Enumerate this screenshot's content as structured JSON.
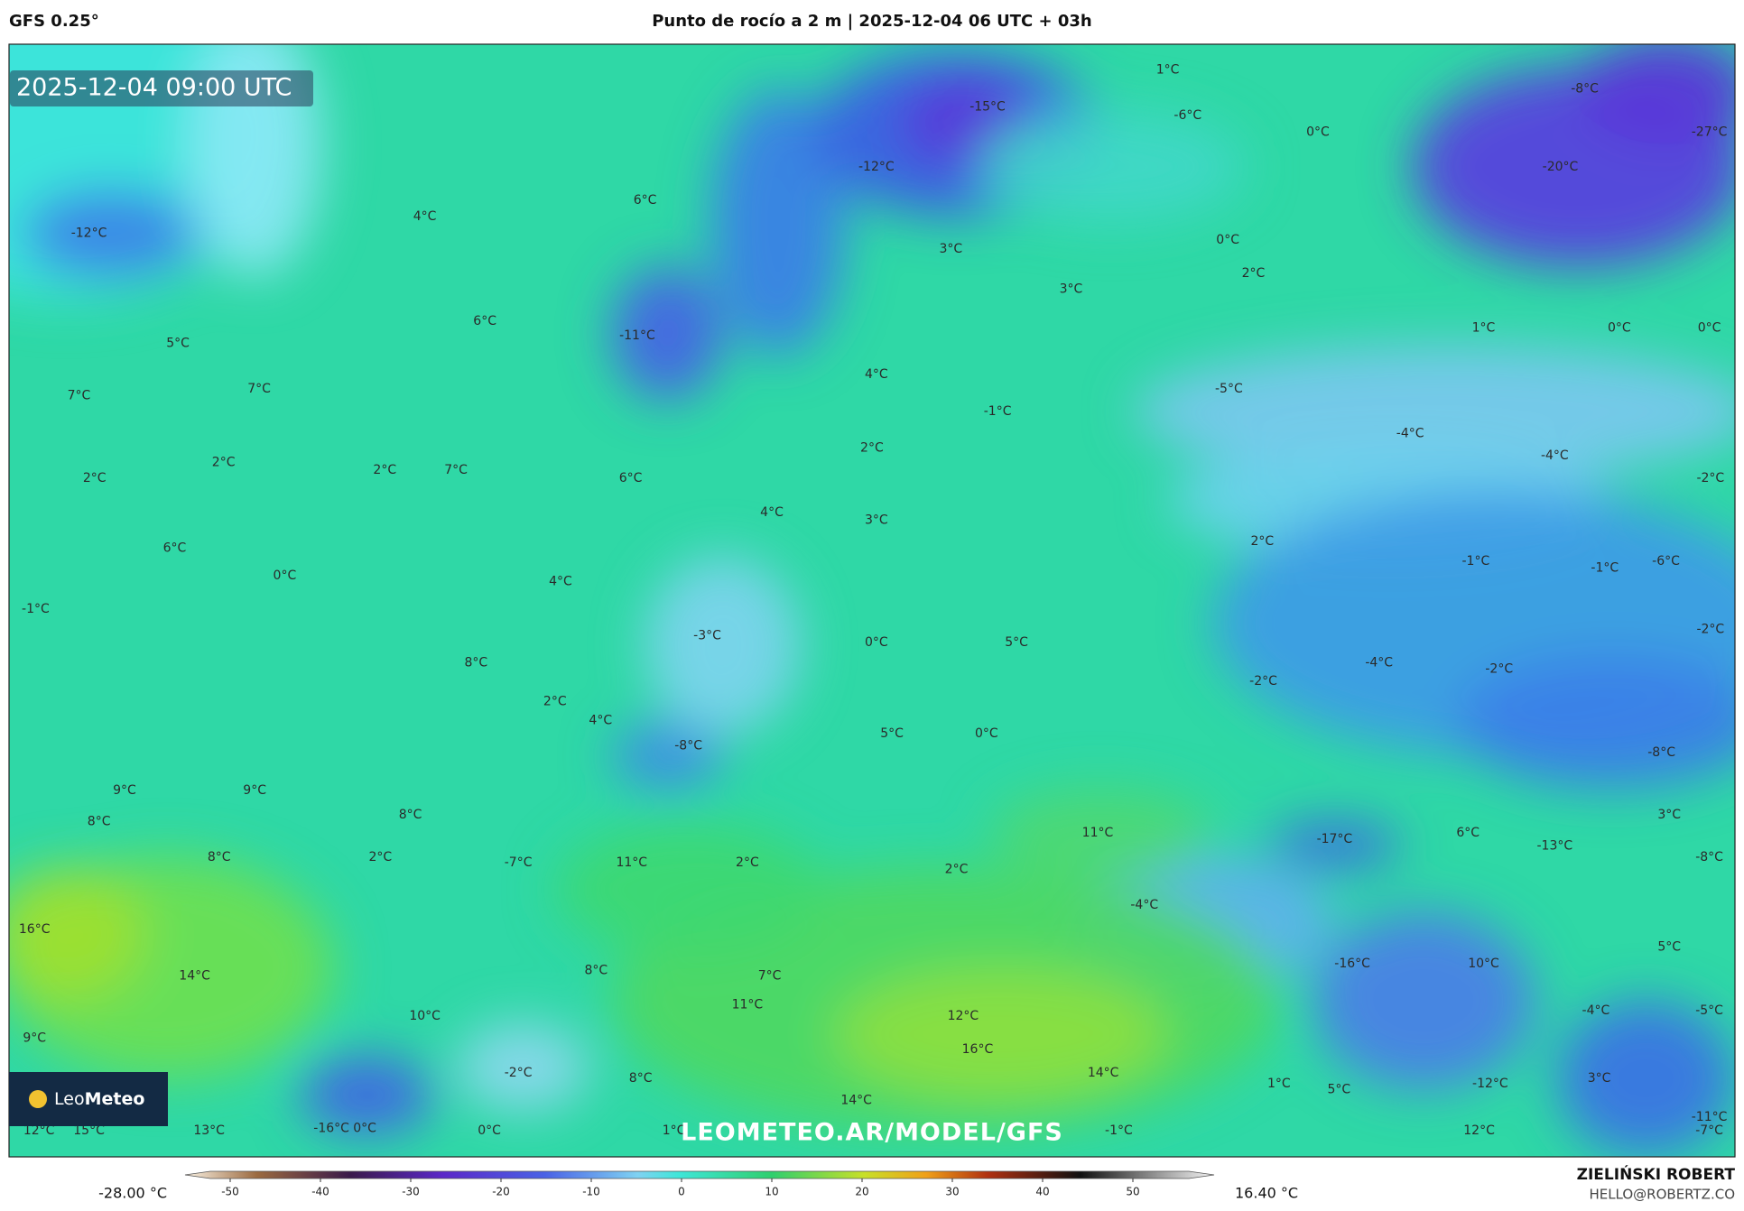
{
  "header": {
    "model": "GFS 0.25°",
    "title": "Punto de rocío a 2 m | 2025-12-04 06 UTC + 03h"
  },
  "timestamp": "2025-12-04 09:00 UTC",
  "watermark": "LEOMETEO.AR/MODEL/GFS",
  "logo": {
    "brand_light": "Leo",
    "brand_bold": "Meteo"
  },
  "map_labels": [
    "1°C",
    "-8°C",
    "-15°C",
    "-6°C",
    "0°C",
    "-27°C",
    "-12°C",
    "-20°C",
    "6°C",
    "4°C",
    "-12°C",
    "0°C",
    "3°C",
    "2°C",
    "3°C",
    "6°C",
    "1°C",
    "0°C",
    "0°C",
    "-11°C",
    "5°C",
    "4°C",
    "-5°C",
    "7°C",
    "7°C",
    "-1°C",
    "-4°C",
    "2°C",
    "-4°C",
    "2°C",
    "2°C",
    "7°C",
    "6°C",
    "2°C",
    "-2°C",
    "4°C",
    "3°C",
    "2°C",
    "6°C",
    "-1°C",
    "-6°C",
    "-1°C",
    "0°C",
    "4°C",
    "-1°C",
    "-2°C",
    "-3°C",
    "0°C",
    "5°C",
    "8°C",
    "-4°C",
    "-2°C",
    "-2°C",
    "2°C",
    "4°C",
    "5°C",
    "0°C",
    "-8°C",
    "-8°C",
    "9°C",
    "9°C",
    "3°C",
    "8°C",
    "8°C",
    "11°C",
    "6°C",
    "-17°C",
    "-13°C",
    "8°C",
    "2°C",
    "-7°C",
    "11°C",
    "2°C",
    "-8°C",
    "2°C",
    "-4°C",
    "16°C",
    "5°C",
    "-16°C",
    "10°C",
    "8°C",
    "14°C",
    "7°C",
    "11°C",
    "-4°C",
    "-5°C",
    "12°C",
    "10°C",
    "9°C",
    "16°C",
    "-2°C",
    "14°C",
    "8°C",
    "3°C",
    "-12°C",
    "1°C",
    "5°C",
    "14°C",
    "-11°C",
    "12°C",
    "15°C",
    "13°C",
    "-16°C",
    "0°C",
    "0°C",
    "1°C",
    "-1°C",
    "12°C",
    "-7°C"
  ],
  "colorbar": {
    "min_label": "-28.00 °C",
    "max_label": "16.40 °C",
    "range": [
      -55,
      59
    ],
    "ticks": [
      -50,
      -40,
      -30,
      -20,
      -10,
      0,
      10,
      20,
      30,
      40,
      50
    ]
  },
  "footer": {
    "author": "ZIELIŃSKI ROBERT",
    "contact": "HELLO@ROBERTZ.CO"
  }
}
